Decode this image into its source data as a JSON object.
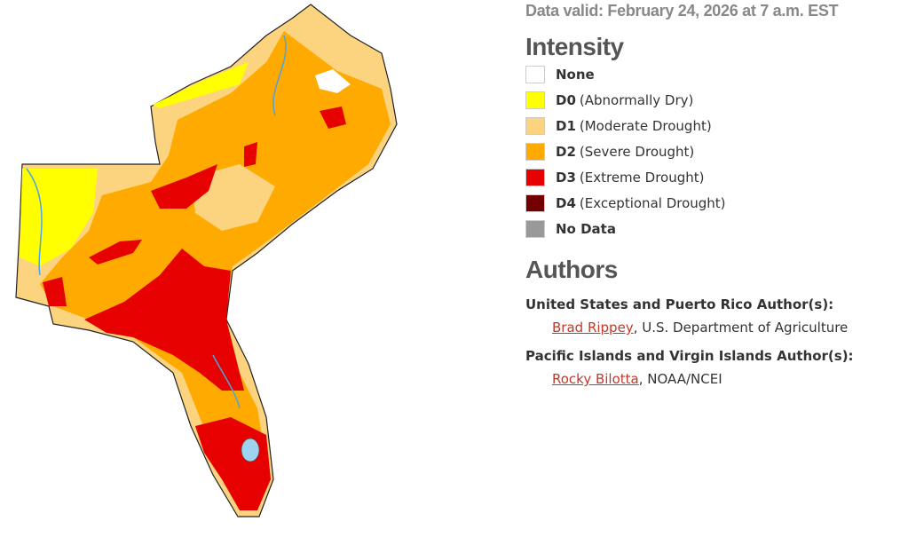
{
  "header": {
    "data_valid": "Data valid: February 24, 2026 at 7 a.m. EST"
  },
  "legend": {
    "title": "Intensity",
    "items": [
      {
        "code": "None",
        "color": "#ffffff"
      },
      {
        "code": "D0",
        "description": "(Abnormally Dry)",
        "color": "#ffff00"
      },
      {
        "code": "D1",
        "description": "(Moderate Drought)",
        "color": "#fcd37f"
      },
      {
        "code": "D2",
        "description": "(Severe Drought)",
        "color": "#ffaa00"
      },
      {
        "code": "D3",
        "description": "(Extreme Drought)",
        "color": "#e60000"
      },
      {
        "code": "D4",
        "description": "(Exceptional Drought)",
        "color": "#730000"
      },
      {
        "code": "No Data",
        "color": "#999999"
      }
    ]
  },
  "authors": {
    "title": "Authors",
    "groups": [
      {
        "heading": "United States and Puerto Rico Author(s):",
        "name": "Brad Rippey",
        "affiliation": ", U.S. Department of Agriculture"
      },
      {
        "heading": "Pacific Islands and Virgin Islands Author(s):",
        "name": "Rocky Bilotta",
        "affiliation": ", NOAA/NCEI"
      }
    ]
  }
}
